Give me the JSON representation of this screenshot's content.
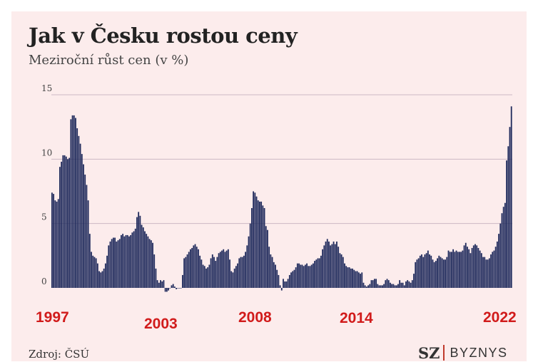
{
  "chart_data": {
    "type": "bar",
    "title": "Jak v Česku rostou ceny",
    "subtitle": "Meziroční růst cen (v %)",
    "ylim": [
      -1,
      15
    ],
    "yticks": [
      0,
      5,
      10,
      15
    ],
    "grid": true,
    "x_start": "1997-01",
    "frequency": "monthly",
    "year_labels": [
      "1997",
      "2003",
      "2008",
      "2014",
      "2022"
    ],
    "colors": {
      "bars": "#1f2a5c",
      "grid": "#ccb8c4",
      "year_labels": "#d11b1b",
      "background": "#fcecec"
    },
    "values": [
      7.4,
      7.3,
      6.8,
      6.7,
      6.9,
      9.4,
      9.8,
      10.3,
      10.3,
      10.2,
      10.0,
      10.1,
      13.1,
      13.4,
      13.4,
      13.2,
      12.4,
      11.8,
      11.2,
      10.4,
      9.6,
      8.8,
      8.0,
      6.8,
      4.2,
      2.8,
      2.5,
      2.4,
      2.3,
      1.9,
      1.3,
      1.2,
      1.3,
      1.5,
      1.9,
      2.5,
      3.3,
      3.6,
      3.8,
      3.9,
      3.9,
      3.6,
      3.7,
      3.8,
      4.1,
      4.2,
      4.0,
      4.1,
      4.1,
      4.0,
      4.1,
      4.3,
      4.4,
      4.6,
      5.5,
      5.9,
      5.6,
      4.9,
      4.7,
      4.4,
      4.2,
      4.0,
      3.8,
      3.7,
      3.5,
      2.6,
      1.5,
      0.6,
      0.4,
      0.6,
      0.5,
      0.6,
      -0.3,
      -0.3,
      -0.2,
      0.0,
      0.2,
      0.3,
      0.1,
      -0.1,
      0.0,
      0.0,
      0.0,
      1.0,
      2.3,
      2.4,
      2.6,
      2.8,
      3.0,
      3.1,
      3.3,
      3.4,
      3.2,
      3.0,
      2.5,
      2.2,
      1.8,
      1.7,
      1.5,
      1.6,
      1.8,
      2.3,
      2.6,
      2.4,
      2.1,
      2.4,
      2.7,
      2.8,
      2.9,
      3.0,
      2.8,
      2.9,
      3.0,
      2.2,
      1.3,
      1.2,
      1.5,
      1.7,
      1.9,
      2.3,
      2.4,
      2.4,
      2.5,
      2.8,
      3.3,
      4.0,
      5.0,
      6.2,
      7.5,
      7.4,
      7.1,
      6.8,
      6.7,
      6.7,
      6.4,
      6.2,
      4.8,
      4.5,
      3.2,
      2.6,
      2.4,
      2.0,
      1.8,
      1.4,
      1.0,
      0.2,
      -0.2,
      0.7,
      0.5,
      0.5,
      0.7,
      1.0,
      1.2,
      1.3,
      1.4,
      1.6,
      1.9,
      1.9,
      1.8,
      1.8,
      1.7,
      1.8,
      1.9,
      1.7,
      1.7,
      1.8,
      1.9,
      2.1,
      2.2,
      2.3,
      2.3,
      2.5,
      3.0,
      3.3,
      3.6,
      3.8,
      3.6,
      3.3,
      3.4,
      3.6,
      3.4,
      3.6,
      3.2,
      2.7,
      2.6,
      2.4,
      1.9,
      1.7,
      1.6,
      1.6,
      1.5,
      1.5,
      1.4,
      1.3,
      1.3,
      1.2,
      1.1,
      1.2,
      0.4,
      0.2,
      0.1,
      0.2,
      0.3,
      0.6,
      0.6,
      0.7,
      0.7,
      0.3,
      0.2,
      0.2,
      0.2,
      0.3,
      0.6,
      0.7,
      0.6,
      0.4,
      0.3,
      0.3,
      0.2,
      0.2,
      0.3,
      0.6,
      0.4,
      0.4,
      0.2,
      0.5,
      0.6,
      0.5,
      0.4,
      0.6,
      1.1,
      2.0,
      2.2,
      2.3,
      2.5,
      2.6,
      2.4,
      2.6,
      2.7,
      2.9,
      2.6,
      2.5,
      2.2,
      2.0,
      2.1,
      2.3,
      2.5,
      2.4,
      2.3,
      2.2,
      2.2,
      2.4,
      2.9,
      2.8,
      2.8,
      3.0,
      2.8,
      2.9,
      2.8,
      2.8,
      2.8,
      2.9,
      3.3,
      3.5,
      3.2,
      3.0,
      2.7,
      3.1,
      3.3,
      3.4,
      3.3,
      3.1,
      2.9,
      2.7,
      2.4,
      2.4,
      2.2,
      2.2,
      2.3,
      2.6,
      2.8,
      2.9,
      3.2,
      3.6,
      4.2,
      5.0,
      5.8,
      6.3,
      6.6,
      9.9,
      11.0,
      12.5,
      14.1
    ]
  },
  "source": "Zdroj: ČSÚ",
  "logo": {
    "mark": "SZ",
    "text": "BYZNYS"
  }
}
